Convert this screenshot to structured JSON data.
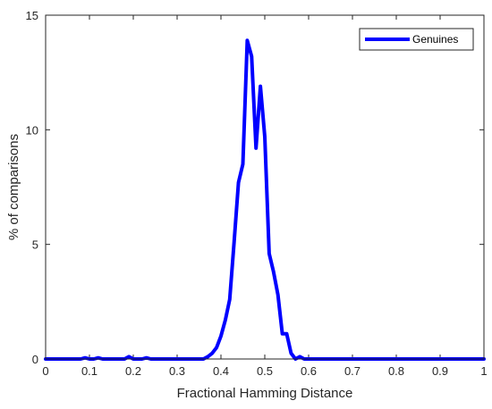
{
  "chart_data": {
    "type": "line",
    "xlabel": "Fractional Hamming Distance",
    "ylabel": "% of comparisons",
    "xlim": [
      0,
      1
    ],
    "ylim": [
      0,
      15
    ],
    "x_ticks": [
      0,
      0.1,
      0.2,
      0.3,
      0.4,
      0.5,
      0.6,
      0.7,
      0.8,
      0.9,
      1
    ],
    "x_tick_labels": [
      "0",
      "0.1",
      "0.2",
      "0.3",
      "0.4",
      "0.5",
      "0.6",
      "0.7",
      "0.8",
      "0.9",
      "1"
    ],
    "y_ticks": [
      0,
      5,
      10,
      15
    ],
    "y_tick_labels": [
      "0",
      "5",
      "10",
      "15"
    ],
    "grid": false,
    "legend_position": "top-right",
    "series": [
      {
        "name": "Genuines",
        "color": "#0000ff",
        "x": [
          0,
          0.08,
          0.09,
          0.1,
          0.11,
          0.12,
          0.13,
          0.18,
          0.19,
          0.2,
          0.21,
          0.22,
          0.23,
          0.24,
          0.36,
          0.37,
          0.38,
          0.39,
          0.4,
          0.41,
          0.42,
          0.43,
          0.44,
          0.45,
          0.46,
          0.47,
          0.48,
          0.49,
          0.5,
          0.51,
          0.52,
          0.53,
          0.54,
          0.55,
          0.56,
          0.57,
          0.58,
          0.59,
          0.6,
          1.0
        ],
        "y": [
          0,
          0,
          0.05,
          0,
          0,
          0.05,
          0,
          0,
          0.1,
          0,
          0,
          0,
          0.05,
          0,
          0,
          0.1,
          0.25,
          0.5,
          1.0,
          1.7,
          2.6,
          5.1,
          7.7,
          8.5,
          13.9,
          13.2,
          9.2,
          11.9,
          9.7,
          4.6,
          3.8,
          2.8,
          1.1,
          1.1,
          0.25,
          0,
          0.1,
          0,
          0,
          0
        ]
      }
    ]
  }
}
